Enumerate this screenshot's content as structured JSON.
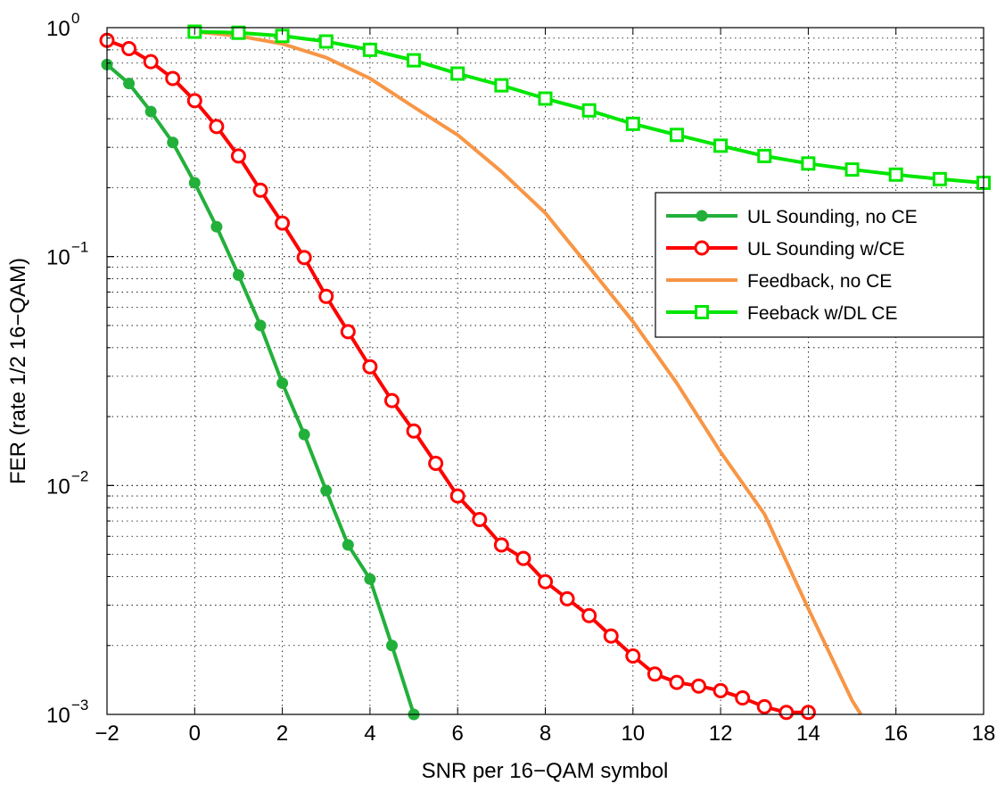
{
  "chart_data": {
    "type": "line",
    "title": "",
    "xlabel": "SNR per 16−QAM symbol",
    "ylabel": "FER (rate 1/2 16−QAM)",
    "xlim": [
      -2,
      18
    ],
    "ylim": [
      0.001,
      1
    ],
    "yscale": "log",
    "grid": true,
    "legend_position": "right",
    "x_ticks": [
      -2,
      0,
      2,
      4,
      6,
      8,
      10,
      12,
      14,
      16,
      18
    ],
    "x_tick_labels": [
      "−2",
      "0",
      "2",
      "4",
      "6",
      "8",
      "10",
      "12",
      "14",
      "16",
      "18"
    ],
    "y_ticks": [
      {
        "value": 1,
        "base": "10",
        "exp": "0"
      },
      {
        "value": 0.1,
        "base": "10",
        "exp": "−1"
      },
      {
        "value": 0.01,
        "base": "10",
        "exp": "−2"
      },
      {
        "value": 0.001,
        "base": "10",
        "exp": "−3"
      }
    ],
    "series": [
      {
        "name": "UL Sounding, no CE",
        "color": "#22b03b",
        "marker": "dot",
        "x": [
          -2,
          -1.5,
          -1,
          -0.5,
          0,
          0.5,
          1,
          1.5,
          2,
          2.5,
          3,
          3.5,
          4,
          4.5,
          5
        ],
        "y": [
          0.69,
          0.57,
          0.43,
          0.315,
          0.21,
          0.135,
          0.083,
          0.05,
          0.028,
          0.0167,
          0.0095,
          0.0055,
          0.0039,
          0.002,
          0.001
        ]
      },
      {
        "name": "UL Sounding w/CE",
        "color": "#ff0000",
        "marker": "circle",
        "x": [
          -2,
          -1.5,
          -1,
          -0.5,
          0,
          0.5,
          1,
          1.5,
          2,
          2.5,
          3,
          3.5,
          4,
          4.5,
          5,
          5.5,
          6,
          6.5,
          7,
          7.5,
          8,
          8.5,
          9,
          9.5,
          10,
          10.5,
          11,
          11.5,
          12,
          12.5,
          13,
          13.5,
          14
        ],
        "y": [
          0.88,
          0.81,
          0.71,
          0.6,
          0.48,
          0.37,
          0.275,
          0.195,
          0.14,
          0.099,
          0.067,
          0.047,
          0.033,
          0.0235,
          0.0173,
          0.0125,
          0.009,
          0.0071,
          0.0055,
          0.0048,
          0.0038,
          0.0032,
          0.0027,
          0.0022,
          0.0018,
          0.0015,
          0.00138,
          0.00133,
          0.00127,
          0.00118,
          0.00108,
          0.00102,
          0.00102
        ]
      },
      {
        "name": "Feedback, no CE",
        "color": "#f79646",
        "marker": "none",
        "x": [
          0,
          1,
          2,
          3,
          4,
          5,
          6,
          7,
          8,
          9,
          10,
          11,
          12,
          13,
          14,
          15,
          15.2
        ],
        "y": [
          0.96,
          0.92,
          0.85,
          0.74,
          0.6,
          0.45,
          0.34,
          0.235,
          0.155,
          0.09,
          0.052,
          0.028,
          0.014,
          0.0075,
          0.0029,
          0.00115,
          0.001
        ]
      },
      {
        "name": "Feeback w/DL CE",
        "color": "#00e600",
        "marker": "square",
        "x": [
          0,
          1,
          2,
          3,
          4,
          5,
          6,
          7,
          8,
          9,
          10,
          11,
          12,
          13,
          14,
          15,
          16,
          17,
          18
        ],
        "y": [
          0.96,
          0.95,
          0.92,
          0.87,
          0.8,
          0.72,
          0.63,
          0.56,
          0.49,
          0.435,
          0.38,
          0.34,
          0.305,
          0.275,
          0.255,
          0.24,
          0.228,
          0.218,
          0.21
        ]
      }
    ]
  }
}
